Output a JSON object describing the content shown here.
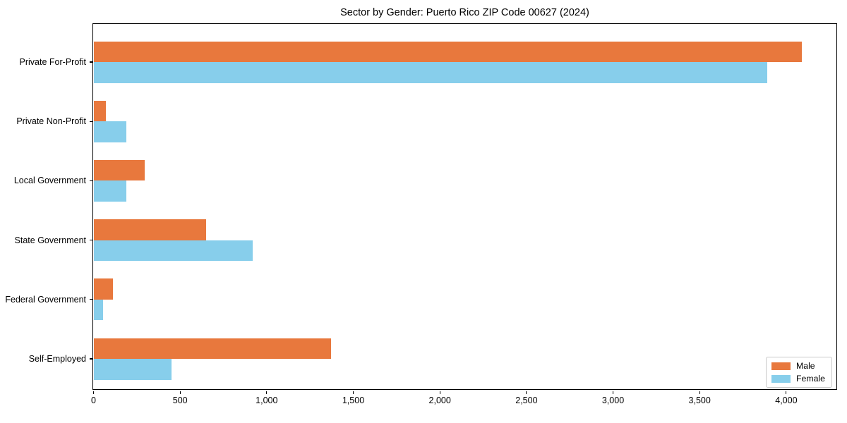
{
  "chart_data": {
    "type": "bar",
    "orientation": "horizontal",
    "title": "Sector by Gender: Puerto Rico ZIP Code 00627 (2024)",
    "categories": [
      "Private For-Profit",
      "Private Non-Profit",
      "Local Government",
      "State Government",
      "Federal Government",
      "Self-Employed"
    ],
    "series": [
      {
        "name": "Male",
        "color": "#e8783d",
        "values": [
          4090,
          70,
          295,
          650,
          110,
          1370
        ]
      },
      {
        "name": "Female",
        "color": "#87ceeb",
        "values": [
          3890,
          190,
          190,
          920,
          55,
          450
        ]
      }
    ],
    "xlabel": "",
    "ylabel": "",
    "xlim": [
      0,
      4300
    ],
    "xticks": [
      {
        "value": 0,
        "label": "0"
      },
      {
        "value": 500,
        "label": "500"
      },
      {
        "value": 1000,
        "label": "1,000"
      },
      {
        "value": 1500,
        "label": "1,500"
      },
      {
        "value": 2000,
        "label": "2,000"
      },
      {
        "value": 2500,
        "label": "2,500"
      },
      {
        "value": 3000,
        "label": "3,000"
      },
      {
        "value": 3500,
        "label": "3,500"
      },
      {
        "value": 4000,
        "label": "4,000"
      }
    ],
    "grid": false,
    "legend": {
      "position": "lower right"
    },
    "colors": {
      "spine": "#000000",
      "text": "#000000",
      "legend_border": "#c9c9c9",
      "background": "#ffffff"
    }
  }
}
